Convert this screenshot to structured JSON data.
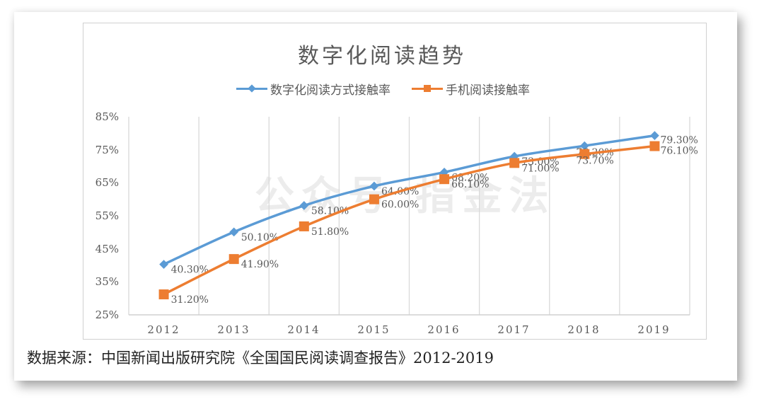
{
  "chart_data": {
    "type": "line",
    "title": "数字化阅读趋势",
    "categories": [
      "2012",
      "2013",
      "2014",
      "2015",
      "2016",
      "2017",
      "2018",
      "2019"
    ],
    "series": [
      {
        "name": "数字化阅读方式接触率",
        "color": "#5b9bd5",
        "marker": "diamond",
        "values": [
          40.3,
          50.1,
          58.1,
          64.0,
          68.2,
          73.0,
          76.2,
          79.3
        ],
        "labels": [
          "40.30%",
          "50.10%",
          "58.10%",
          "64.00%",
          "68.20%",
          "73.00%",
          "76.20%",
          "79.30%"
        ]
      },
      {
        "name": "手机阅读接触率",
        "color": "#ed7d31",
        "marker": "square",
        "values": [
          31.2,
          41.9,
          51.8,
          60.0,
          66.1,
          71.0,
          73.7,
          76.1
        ],
        "labels": [
          "31.20%",
          "41.90%",
          "51.80%",
          "60.00%",
          "66.10%",
          "71.00%",
          "73.70%",
          "76.10%"
        ]
      }
    ],
    "xlabel": "",
    "ylabel": "",
    "ylim": [
      25,
      85
    ],
    "yticks": [
      "85%",
      "75%",
      "65%",
      "55%",
      "45%",
      "35%",
      "25%"
    ],
    "grid": "vertical",
    "legend_position": "top"
  },
  "watermark": "公众号 指金法",
  "source": "数据来源：中国新闻出版研究院《全国国民阅读调查报告》2012-2019"
}
